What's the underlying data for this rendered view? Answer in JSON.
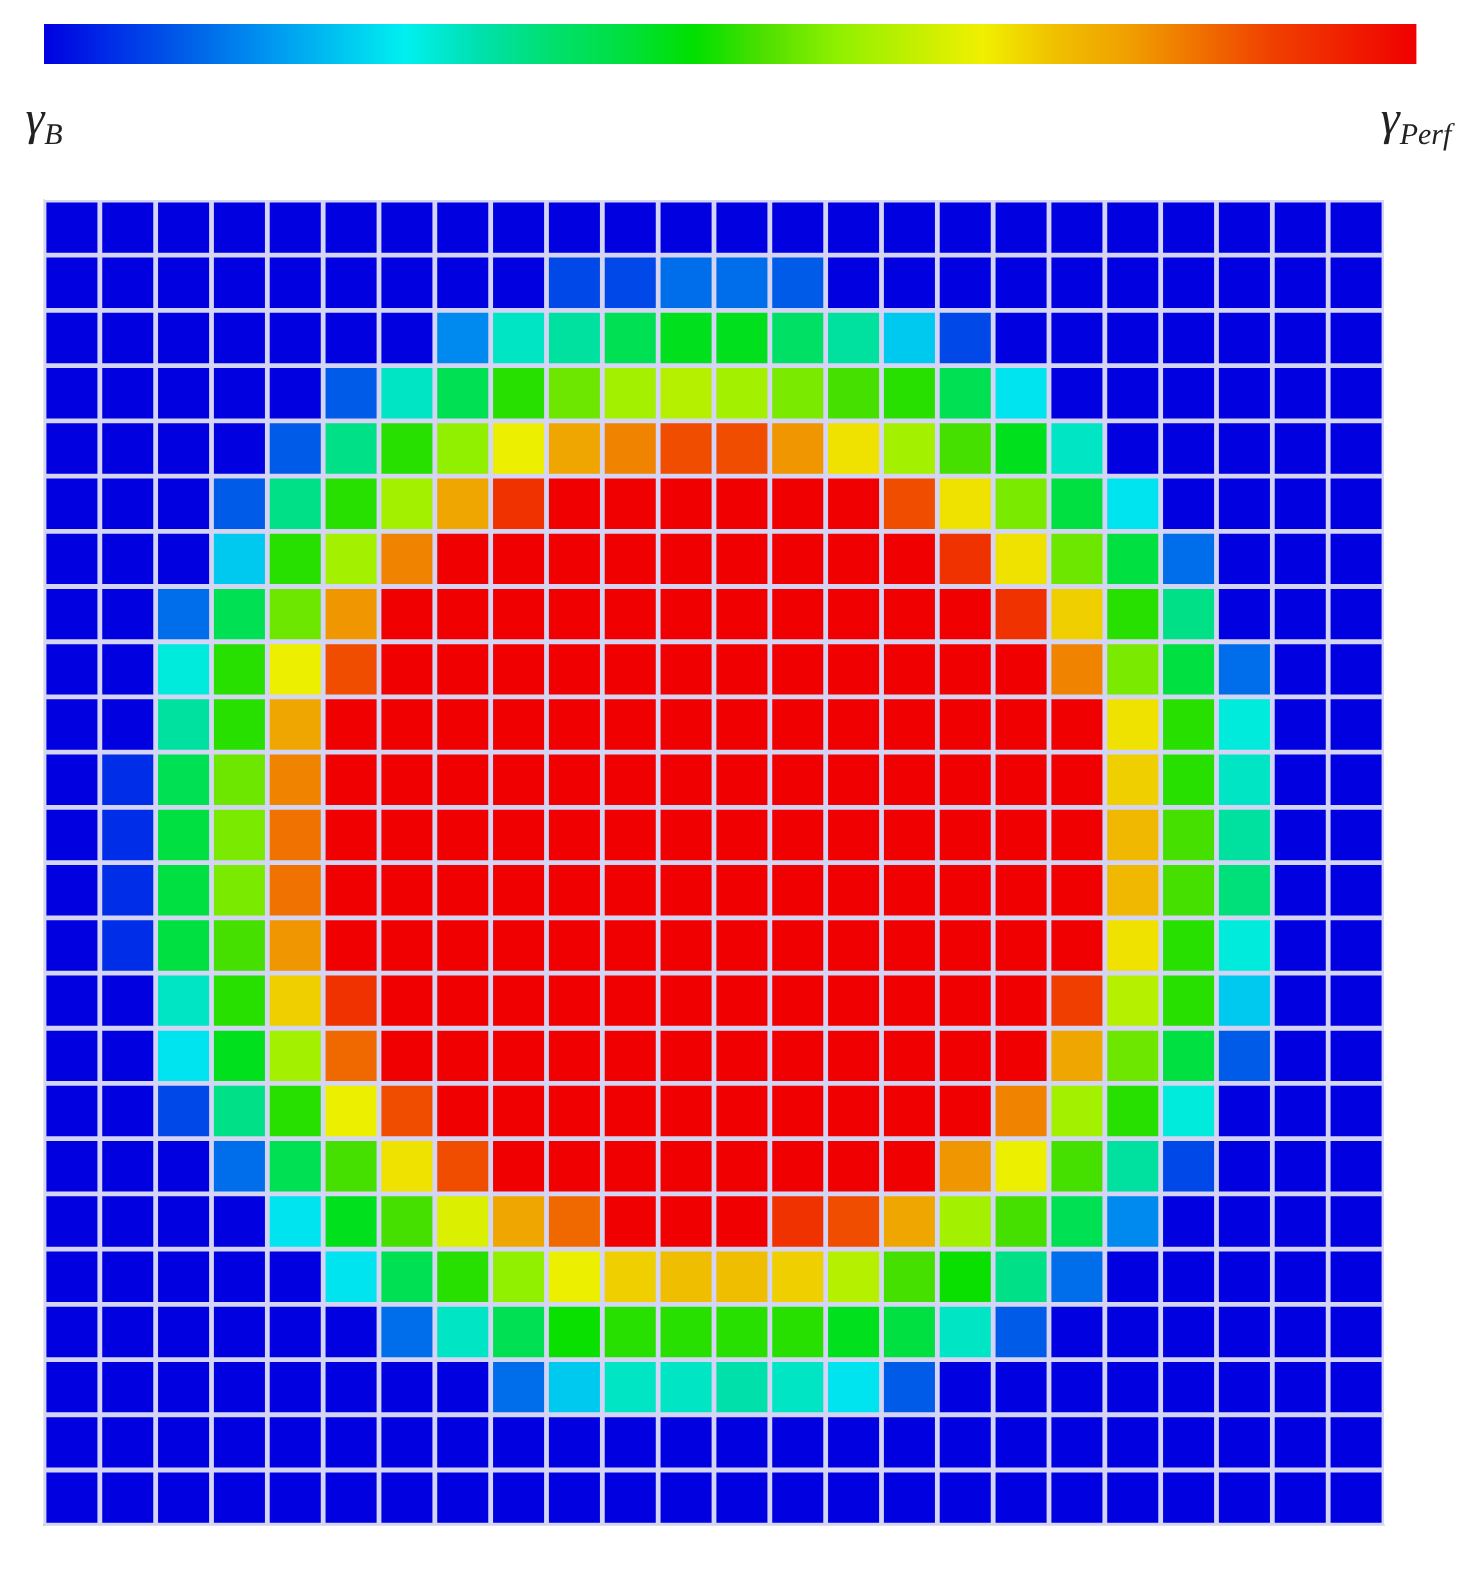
{
  "chart_data": {
    "type": "heatmap",
    "categories": [
      null,
      null,
      null,
      null,
      null,
      null,
      null,
      null,
      null,
      null,
      null,
      null,
      null,
      null,
      null,
      null,
      null,
      null,
      null,
      null,
      null,
      null,
      null,
      null
    ],
    "y_categories": [
      null,
      null,
      null,
      null,
      null,
      null,
      null,
      null,
      null,
      null,
      null,
      null,
      null,
      null,
      null,
      null,
      null,
      null,
      null,
      null,
      null,
      null,
      null,
      null
    ],
    "cells": [
      [
        0,
        0,
        0,
        0,
        0,
        0,
        0,
        0,
        0,
        0,
        0,
        0,
        0,
        0,
        0,
        0,
        0,
        0,
        0,
        0,
        0,
        0,
        0,
        0
      ],
      [
        0,
        0,
        0,
        0,
        0,
        0,
        0,
        0,
        0,
        0.08,
        0.08,
        0.12,
        0.12,
        0.1,
        0,
        0,
        0,
        0,
        0,
        0,
        0,
        0,
        0,
        0
      ],
      [
        0,
        0,
        0,
        0,
        0,
        0,
        0,
        0.15,
        0.3,
        0.33,
        0.4,
        0.45,
        0.45,
        0.38,
        0.33,
        0.22,
        0.08,
        0,
        0,
        0,
        0,
        0,
        0,
        0
      ],
      [
        0,
        0,
        0,
        0,
        0,
        0.1,
        0.3,
        0.4,
        0.5,
        0.55,
        0.6,
        0.62,
        0.6,
        0.56,
        0.52,
        0.5,
        0.4,
        0.25,
        0,
        0,
        0,
        0,
        0,
        0
      ],
      [
        0,
        0,
        0,
        0,
        0.1,
        0.35,
        0.5,
        0.58,
        0.68,
        0.78,
        0.82,
        0.88,
        0.88,
        0.8,
        0.7,
        0.6,
        0.52,
        0.45,
        0.3,
        0,
        0,
        0,
        0,
        0
      ],
      [
        0,
        0,
        0,
        0.1,
        0.35,
        0.5,
        0.6,
        0.78,
        0.92,
        1,
        1,
        1,
        1,
        1,
        1,
        0.88,
        0.7,
        0.56,
        0.42,
        0.25,
        0,
        0,
        0,
        0
      ],
      [
        0,
        0,
        0,
        0.22,
        0.5,
        0.6,
        0.82,
        1,
        1,
        1,
        1,
        1,
        1,
        1,
        1,
        1,
        0.92,
        0.7,
        0.55,
        0.42,
        0.12,
        0,
        0,
        0
      ],
      [
        0,
        0,
        0.12,
        0.4,
        0.55,
        0.8,
        1,
        1,
        1,
        1,
        1,
        1,
        1,
        1,
        1,
        1,
        1,
        0.92,
        0.72,
        0.5,
        0.35,
        0,
        0,
        0
      ],
      [
        0,
        0,
        0.28,
        0.5,
        0.68,
        0.88,
        1,
        1,
        1,
        1,
        1,
        1,
        1,
        1,
        1,
        1,
        1,
        1,
        0.82,
        0.56,
        0.42,
        0.12,
        0,
        0
      ],
      [
        0,
        0,
        0.33,
        0.5,
        0.78,
        1,
        1,
        1,
        1,
        1,
        1,
        1,
        1,
        1,
        1,
        1,
        1,
        1,
        1,
        0.7,
        0.5,
        0.28,
        0,
        0
      ],
      [
        0,
        0.05,
        0.4,
        0.55,
        0.82,
        1,
        1,
        1,
        1,
        1,
        1,
        1,
        1,
        1,
        1,
        1,
        1,
        1,
        1,
        0.72,
        0.5,
        0.3,
        0,
        0
      ],
      [
        0,
        0.05,
        0.42,
        0.56,
        0.84,
        1,
        1,
        1,
        1,
        1,
        1,
        1,
        1,
        1,
        1,
        1,
        1,
        1,
        1,
        0.75,
        0.52,
        0.33,
        0,
        0
      ],
      [
        0,
        0.05,
        0.42,
        0.56,
        0.84,
        1,
        1,
        1,
        1,
        1,
        1,
        1,
        1,
        1,
        1,
        1,
        1,
        1,
        1,
        0.75,
        0.52,
        0.36,
        0,
        0
      ],
      [
        0,
        0.05,
        0.42,
        0.52,
        0.8,
        1,
        1,
        1,
        1,
        1,
        1,
        1,
        1,
        1,
        1,
        1,
        1,
        1,
        1,
        0.7,
        0.5,
        0.28,
        0,
        0
      ],
      [
        0,
        0,
        0.3,
        0.5,
        0.72,
        0.92,
        1,
        1,
        1,
        1,
        1,
        1,
        1,
        1,
        1,
        1,
        1,
        1,
        0.9,
        0.62,
        0.5,
        0.22,
        0,
        0
      ],
      [
        0,
        0,
        0.25,
        0.45,
        0.6,
        0.85,
        1,
        1,
        1,
        1,
        1,
        1,
        1,
        1,
        1,
        1,
        1,
        1,
        0.78,
        0.55,
        0.42,
        0.1,
        0,
        0
      ],
      [
        0,
        0,
        0.08,
        0.35,
        0.5,
        0.68,
        0.88,
        1,
        1,
        1,
        1,
        1,
        1,
        1,
        1,
        1,
        1,
        0.82,
        0.6,
        0.5,
        0.28,
        0,
        0,
        0
      ],
      [
        0,
        0,
        0,
        0.12,
        0.4,
        0.52,
        0.7,
        0.88,
        1,
        1,
        1,
        1,
        1,
        1,
        1,
        1,
        0.8,
        0.68,
        0.52,
        0.33,
        0.08,
        0,
        0,
        0
      ],
      [
        0,
        0,
        0,
        0,
        0.25,
        0.45,
        0.52,
        0.66,
        0.78,
        0.85,
        1,
        1,
        1,
        0.92,
        0.88,
        0.78,
        0.6,
        0.52,
        0.4,
        0.15,
        0,
        0,
        0,
        0
      ],
      [
        0,
        0,
        0,
        0,
        0,
        0.25,
        0.4,
        0.5,
        0.58,
        0.68,
        0.72,
        0.74,
        0.74,
        0.72,
        0.62,
        0.52,
        0.48,
        0.35,
        0.12,
        0,
        0,
        0,
        0,
        0
      ],
      [
        0,
        0,
        0,
        0,
        0,
        0,
        0.12,
        0.3,
        0.4,
        0.48,
        0.5,
        0.5,
        0.5,
        0.5,
        0.45,
        0.42,
        0.3,
        0.1,
        0,
        0,
        0,
        0,
        0,
        0
      ],
      [
        0,
        0,
        0,
        0,
        0,
        0,
        0,
        0,
        0.12,
        0.22,
        0.3,
        0.3,
        0.32,
        0.3,
        0.25,
        0.1,
        0,
        0,
        0,
        0,
        0,
        0,
        0,
        0
      ],
      [
        0,
        0,
        0,
        0,
        0,
        0,
        0,
        0,
        0,
        0,
        0,
        0,
        0,
        0,
        0,
        0,
        0,
        0,
        0,
        0,
        0,
        0,
        0,
        0
      ],
      [
        0,
        0,
        0,
        0,
        0,
        0,
        0,
        0,
        0,
        0,
        0,
        0,
        0,
        0,
        0,
        0,
        0,
        0,
        0,
        0,
        0,
        0,
        0,
        0
      ]
    ],
    "clim": [
      0,
      1
    ],
    "cticks": [
      {
        "value": 0,
        "label": "γ$_{B}$"
      },
      {
        "value": 1,
        "label": "γ$_{Perf}$"
      }
    ]
  }
}
